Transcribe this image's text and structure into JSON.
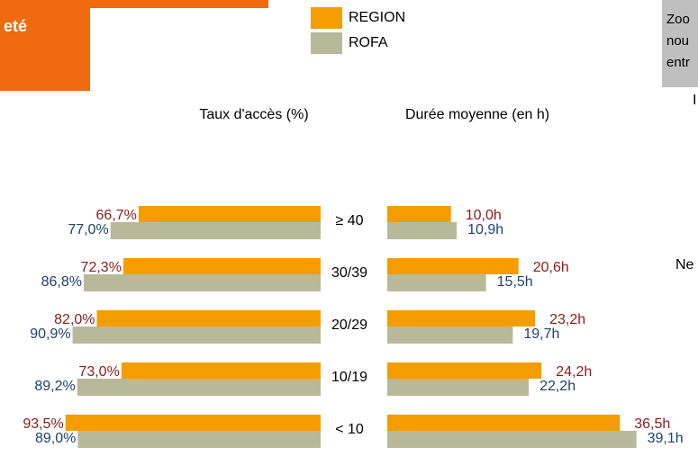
{
  "page": {
    "header_fragment": "eté",
    "side_note": [
      "Zoo",
      "nou",
      "entr"
    ],
    "fragments": [
      "I",
      "Ne"
    ]
  },
  "chart_data": [
    {
      "type": "bar",
      "orientation": "horizontal",
      "direction": "left",
      "title": "Taux d'accès (%)",
      "categories": [
        "≥ 40",
        "30/39",
        "20/29",
        "10/19",
        "< 10"
      ],
      "xlim": [
        0,
        100
      ],
      "series": [
        {
          "name": "REGION",
          "color": "#f59c00",
          "label_color": "#8b1a1a",
          "values": [
            66.7,
            72.3,
            82.0,
            73.0,
            93.5
          ],
          "value_labels": [
            "66,7%",
            "72,3%",
            "82,0%",
            "73,0%",
            "93,5%"
          ]
        },
        {
          "name": "ROFA",
          "color": "#b8b99a",
          "label_color": "#1f3f6e",
          "values": [
            77.0,
            86.8,
            90.9,
            89.2,
            89.0
          ],
          "value_labels": [
            "77,0%",
            "86,8%",
            "90,9%",
            "89,2%",
            "89,0%"
          ]
        }
      ]
    },
    {
      "type": "bar",
      "orientation": "horizontal",
      "direction": "right",
      "title": "Durée moyenne (en h)",
      "xlim": [
        0,
        40
      ],
      "series": [
        {
          "color": "#f59c00",
          "label_color": "#8b1a1a",
          "values": [
            10.0,
            20.6,
            23.2,
            24.2,
            36.5
          ],
          "value_labels": [
            "10,0h",
            "20,6h",
            "23,2h",
            "24,2h",
            "36,5h"
          ]
        },
        {
          "color": "#b8b99a",
          "label_color": "#1f3f6e",
          "values": [
            10.9,
            15.5,
            19.7,
            22.2,
            39.1
          ],
          "value_labels": [
            "10,9h",
            "15,5h",
            "19,7h",
            "22,2h",
            "39,1h"
          ]
        }
      ]
    }
  ]
}
